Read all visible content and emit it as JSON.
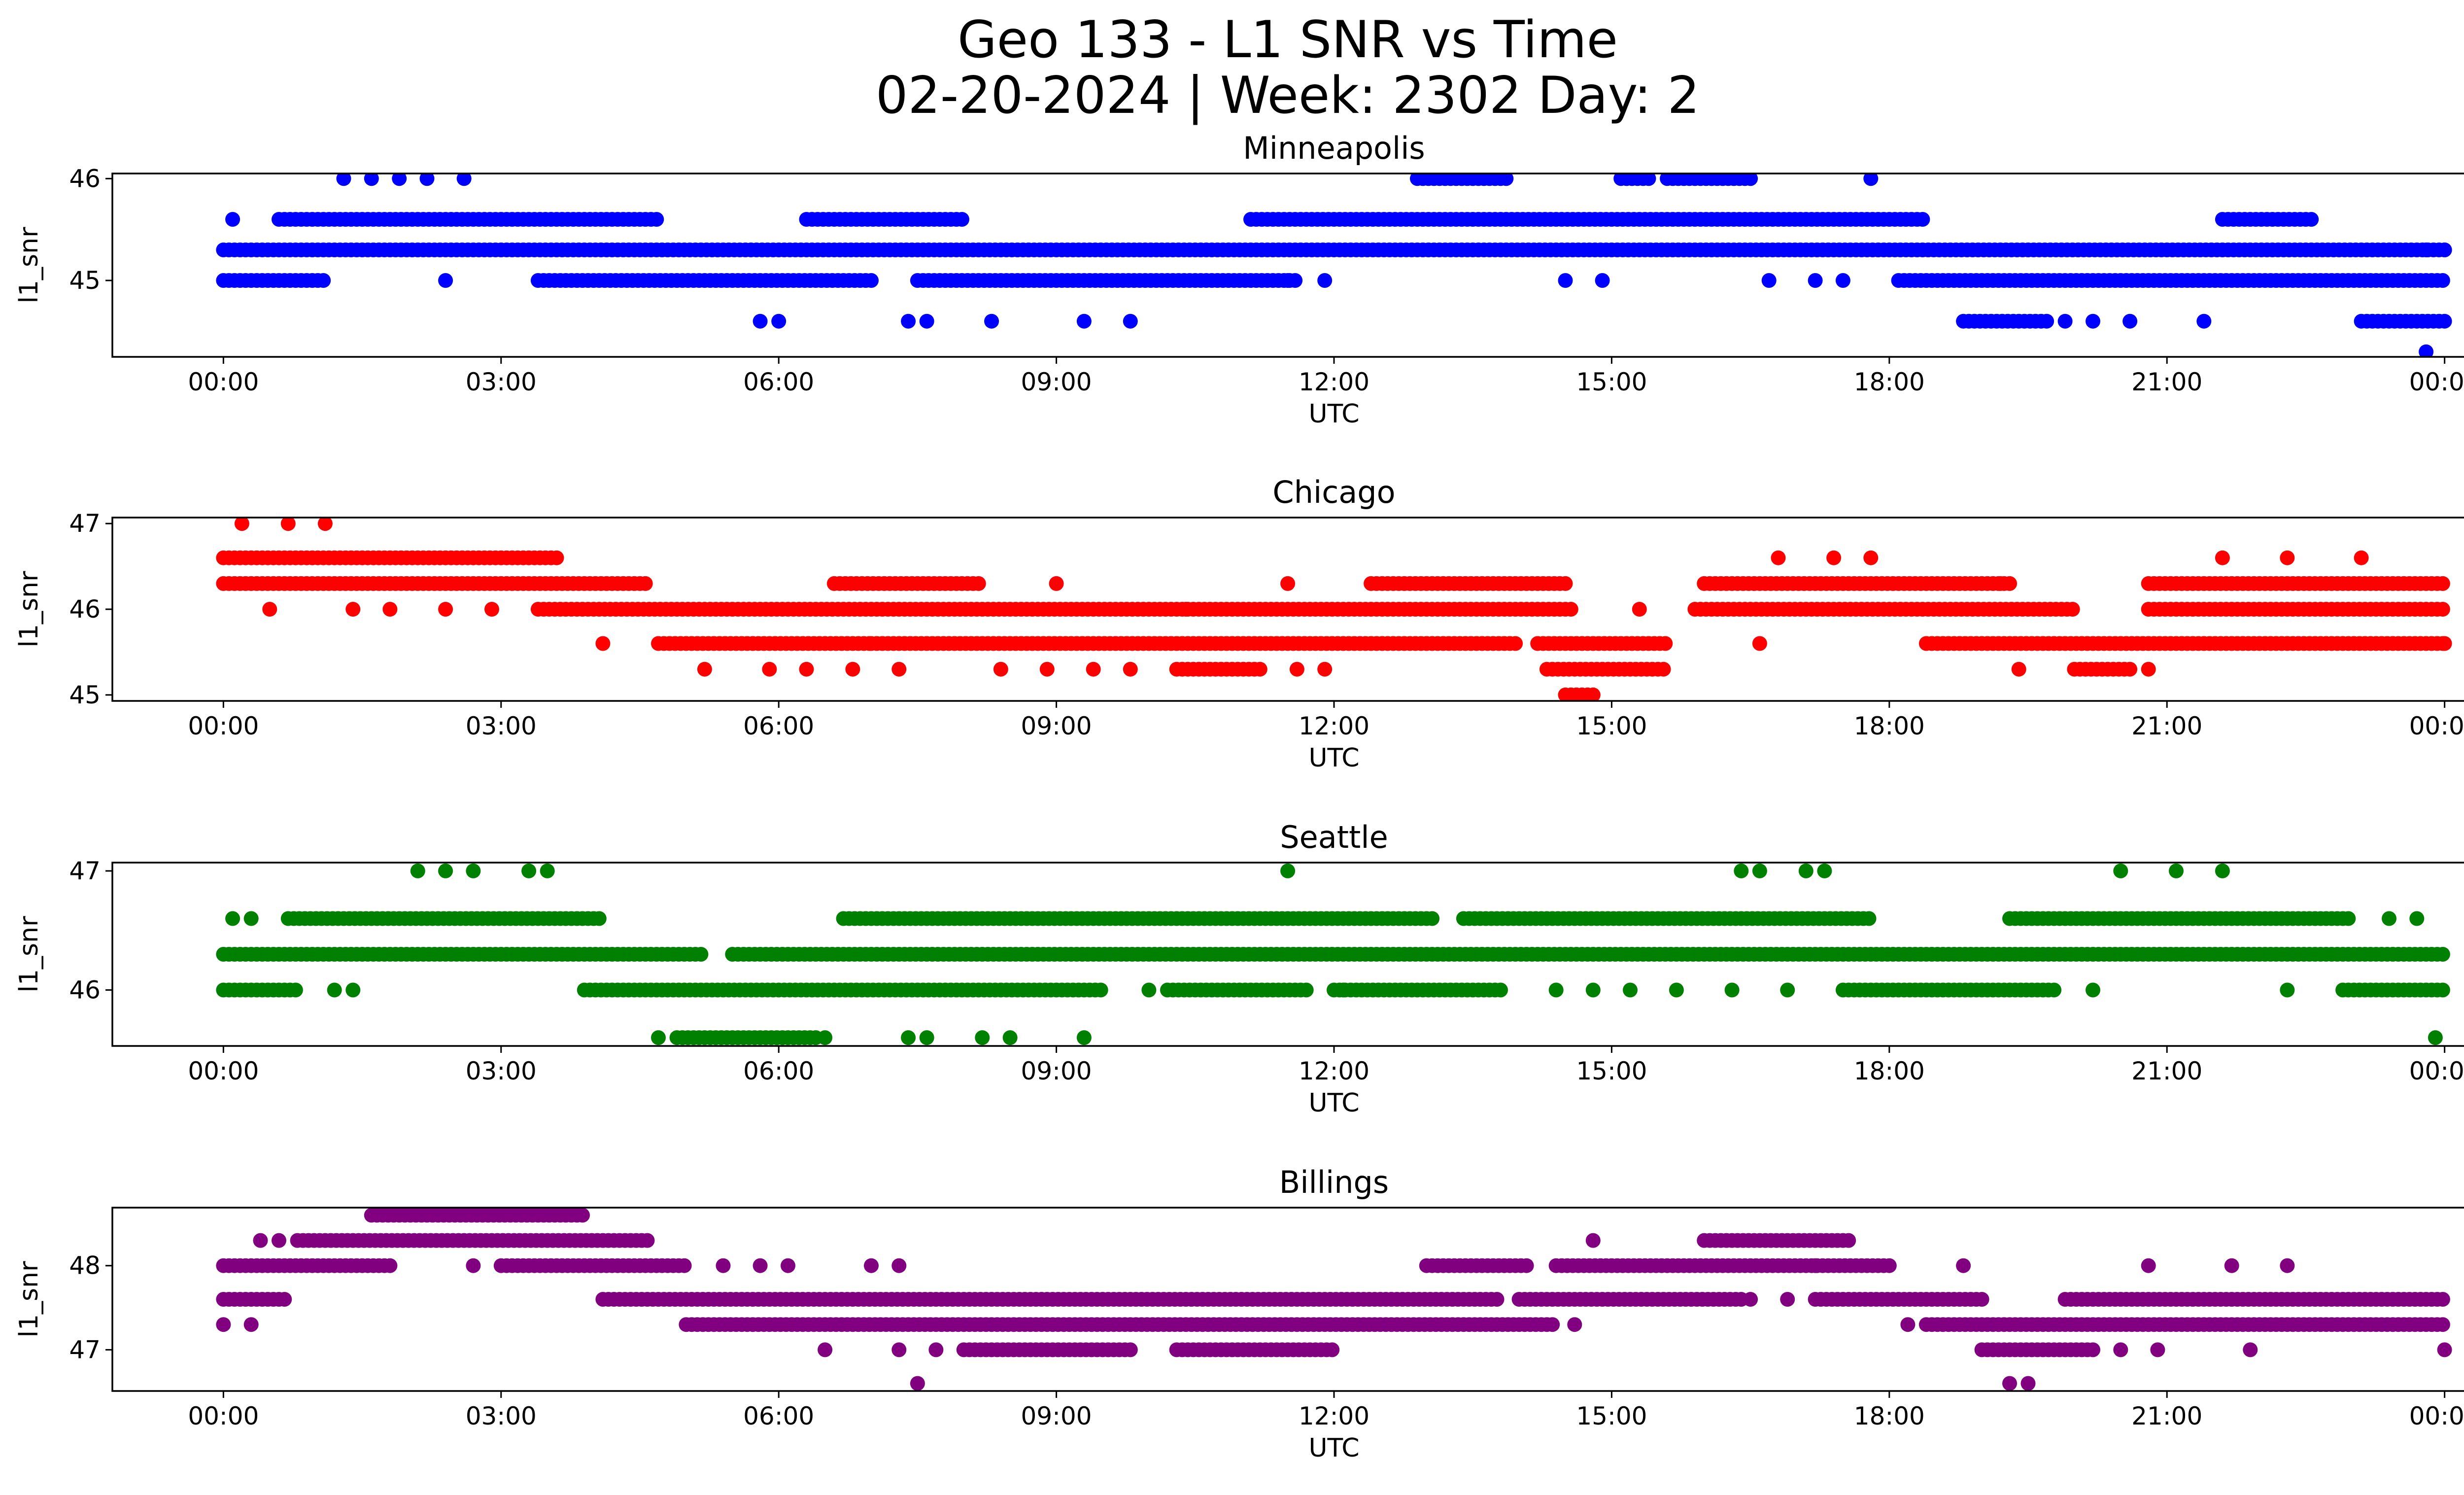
{
  "figure": {
    "title_line1": "Geo 133 - L1 SNR vs Time",
    "title_line2": "02-20-2024 | Week: 2302 Day: 2"
  },
  "chart_data": [
    {
      "type": "scatter",
      "title": "Minneapolis",
      "xlabel": "UTC",
      "ylabel": "l1_snr",
      "color": "#0000ff",
      "x_unit": "hours UTC",
      "xlim": [
        -1.2,
        25.2
      ],
      "ylim": [
        44.25,
        46.05
      ],
      "x_ticks": [
        0,
        3,
        6,
        9,
        12,
        15,
        18,
        21,
        24
      ],
      "x_tick_labels": [
        "00:00",
        "03:00",
        "06:00",
        "09:00",
        "12:00",
        "15:00",
        "18:00",
        "21:00",
        "00:00"
      ],
      "y_ticks": [
        45,
        46
      ],
      "y_tick_labels": [
        "45",
        "46"
      ],
      "series": [
        {
          "segments": [
            {
              "y": 45.3,
              "from": 0.0,
              "to": 24.0
            },
            {
              "y": 45.6,
              "from": 0.6,
              "to": 4.7
            },
            {
              "y": 45.6,
              "from": 6.3,
              "to": 8.0
            },
            {
              "y": 45.6,
              "from": 11.1,
              "to": 18.4
            },
            {
              "y": 45.6,
              "from": 21.6,
              "to": 22.6
            },
            {
              "y": 45.0,
              "from": 0.0,
              "to": 1.1
            },
            {
              "y": 45.0,
              "from": 3.4,
              "to": 7.0
            },
            {
              "y": 45.0,
              "from": 7.5,
              "to": 11.6
            },
            {
              "y": 45.0,
              "from": 18.1,
              "to": 24.0
            },
            {
              "y": 46.0,
              "from": 12.9,
              "to": 13.9
            },
            {
              "y": 46.0,
              "from": 15.1,
              "to": 15.4
            },
            {
              "y": 46.0,
              "from": 15.6,
              "to": 16.5
            },
            {
              "y": 44.6,
              "from": 18.8,
              "to": 19.7
            },
            {
              "y": 44.6,
              "from": 23.1,
              "to": 24.0
            }
          ],
          "points": [
            [
              0.1,
              45.6
            ],
            [
              1.3,
              46.0
            ],
            [
              1.6,
              46.0
            ],
            [
              1.9,
              46.0
            ],
            [
              2.2,
              46.0
            ],
            [
              2.6,
              46.0
            ],
            [
              2.4,
              45.0
            ],
            [
              5.8,
              44.6
            ],
            [
              6.0,
              44.6
            ],
            [
              7.4,
              44.6
            ],
            [
              7.6,
              44.6
            ],
            [
              8.3,
              44.6
            ],
            [
              9.3,
              44.6
            ],
            [
              9.8,
              44.6
            ],
            [
              11.9,
              45.0
            ],
            [
              11.5,
              45.0
            ],
            [
              14.5,
              45.0
            ],
            [
              14.9,
              45.0
            ],
            [
              16.7,
              45.0
            ],
            [
              17.2,
              45.0
            ],
            [
              17.5,
              45.0
            ],
            [
              17.8,
              46.0
            ],
            [
              19.9,
              44.6
            ],
            [
              20.2,
              44.6
            ],
            [
              20.6,
              44.6
            ],
            [
              21.4,
              44.6
            ],
            [
              23.8,
              45.3
            ],
            [
              24.0,
              45.3
            ],
            [
              23.8,
              44.3
            ]
          ]
        }
      ]
    },
    {
      "type": "scatter",
      "title": "Chicago",
      "xlabel": "UTC",
      "ylabel": "l1_snr",
      "color": "#ff0000",
      "x_unit": "hours UTC",
      "xlim": [
        -1.2,
        25.2
      ],
      "ylim": [
        44.93,
        47.07
      ],
      "x_ticks": [
        0,
        3,
        6,
        9,
        12,
        15,
        18,
        21,
        24
      ],
      "x_tick_labels": [
        "00:00",
        "03:00",
        "06:00",
        "09:00",
        "12:00",
        "15:00",
        "18:00",
        "21:00",
        "00:00"
      ],
      "y_ticks": [
        45,
        46,
        47
      ],
      "y_tick_labels": [
        "45",
        "46",
        "47"
      ],
      "series": [
        {
          "segments": [
            {
              "y": 46.6,
              "from": 0.0,
              "to": 3.6
            },
            {
              "y": 46.3,
              "from": 0.0,
              "to": 4.6
            },
            {
              "y": 46.3,
              "from": 6.6,
              "to": 8.2
            },
            {
              "y": 46.3,
              "from": 12.4,
              "to": 14.5
            },
            {
              "y": 46.3,
              "from": 16.0,
              "to": 19.3
            },
            {
              "y": 46.3,
              "from": 20.8,
              "to": 24.0
            },
            {
              "y": 46.0,
              "from": 3.4,
              "to": 14.6
            },
            {
              "y": 46.0,
              "from": 15.9,
              "to": 20.0
            },
            {
              "y": 46.0,
              "from": 20.8,
              "to": 24.0
            },
            {
              "y": 45.6,
              "from": 4.7,
              "to": 7.0
            },
            {
              "y": 45.6,
              "from": 7.0,
              "to": 14.0
            },
            {
              "y": 45.6,
              "from": 14.2,
              "to": 15.6
            },
            {
              "y": 45.6,
              "from": 18.4,
              "to": 24.0
            },
            {
              "y": 45.3,
              "from": 14.3,
              "to": 15.6
            },
            {
              "y": 45.3,
              "from": 10.3,
              "to": 11.2
            },
            {
              "y": 45.3,
              "from": 20.0,
              "to": 20.6
            },
            {
              "y": 45.0,
              "from": 14.5,
              "to": 14.8
            }
          ],
          "points": [
            [
              0.2,
              47.0
            ],
            [
              0.7,
              47.0
            ],
            [
              1.1,
              47.0
            ],
            [
              0.5,
              46.0
            ],
            [
              1.4,
              46.0
            ],
            [
              1.8,
              46.0
            ],
            [
              2.4,
              46.0
            ],
            [
              2.9,
              46.0
            ],
            [
              4.1,
              45.6
            ],
            [
              5.2,
              45.3
            ],
            [
              5.9,
              45.3
            ],
            [
              6.3,
              45.3
            ],
            [
              6.8,
              45.3
            ],
            [
              7.3,
              45.3
            ],
            [
              8.4,
              45.3
            ],
            [
              8.9,
              45.3
            ],
            [
              9.4,
              45.3
            ],
            [
              9.8,
              45.3
            ],
            [
              11.6,
              45.3
            ],
            [
              11.9,
              45.3
            ],
            [
              9.0,
              46.3
            ],
            [
              11.5,
              46.3
            ],
            [
              10.4,
              46.0
            ],
            [
              15.3,
              46.0
            ],
            [
              16.6,
              45.6
            ],
            [
              16.8,
              46.6
            ],
            [
              17.4,
              46.6
            ],
            [
              17.8,
              46.6
            ],
            [
              19.4,
              45.3
            ],
            [
              19.2,
              46.3
            ],
            [
              20.8,
              45.3
            ],
            [
              21.6,
              46.6
            ],
            [
              22.3,
              46.6
            ],
            [
              23.1,
              46.6
            ],
            [
              24.0,
              45.6
            ]
          ]
        }
      ]
    },
    {
      "type": "scatter",
      "title": "Seattle",
      "xlabel": "UTC",
      "ylabel": "l1_snr",
      "color": "#008000",
      "x_unit": "hours UTC",
      "xlim": [
        -1.2,
        25.2
      ],
      "ylim": [
        45.53,
        47.07
      ],
      "x_ticks": [
        0,
        3,
        6,
        9,
        12,
        15,
        18,
        21,
        24
      ],
      "x_tick_labels": [
        "00:00",
        "03:00",
        "06:00",
        "09:00",
        "12:00",
        "15:00",
        "18:00",
        "21:00",
        "00:00"
      ],
      "y_ticks": [
        46,
        47
      ],
      "y_tick_labels": [
        "46",
        "47"
      ],
      "series": [
        {
          "segments": [
            {
              "y": 46.3,
              "from": 0.0,
              "to": 5.2
            },
            {
              "y": 46.3,
              "from": 5.5,
              "to": 24.0
            },
            {
              "y": 46.6,
              "from": 0.7,
              "to": 4.1
            },
            {
              "y": 46.6,
              "from": 6.7,
              "to": 13.1
            },
            {
              "y": 46.6,
              "from": 13.4,
              "to": 17.8
            },
            {
              "y": 46.6,
              "from": 19.3,
              "to": 23.0
            },
            {
              "y": 46.0,
              "from": 0.0,
              "to": 0.8
            },
            {
              "y": 46.0,
              "from": 3.9,
              "to": 9.5
            },
            {
              "y": 46.0,
              "from": 10.2,
              "to": 11.7
            },
            {
              "y": 46.0,
              "from": 12.0,
              "to": 13.8
            },
            {
              "y": 46.0,
              "from": 17.5,
              "to": 19.8
            },
            {
              "y": 46.0,
              "from": 22.9,
              "to": 24.0
            },
            {
              "y": 45.6,
              "from": 4.9,
              "to": 6.4
            }
          ],
          "points": [
            [
              0.1,
              46.6
            ],
            [
              0.3,
              46.6
            ],
            [
              1.2,
              46.0
            ],
            [
              1.4,
              46.0
            ],
            [
              2.1,
              47.0
            ],
            [
              2.4,
              47.0
            ],
            [
              2.7,
              47.0
            ],
            [
              3.3,
              47.0
            ],
            [
              3.5,
              47.0
            ],
            [
              4.7,
              45.6
            ],
            [
              6.5,
              45.6
            ],
            [
              7.4,
              45.6
            ],
            [
              7.6,
              45.6
            ],
            [
              8.2,
              45.6
            ],
            [
              8.5,
              45.6
            ],
            [
              9.3,
              45.6
            ],
            [
              11.5,
              47.0
            ],
            [
              10.0,
              46.0
            ],
            [
              12.1,
              46.0
            ],
            [
              14.4,
              46.0
            ],
            [
              14.8,
              46.0
            ],
            [
              15.2,
              46.0
            ],
            [
              15.7,
              46.0
            ],
            [
              16.3,
              46.0
            ],
            [
              16.9,
              46.0
            ],
            [
              16.4,
              47.0
            ],
            [
              16.6,
              47.0
            ],
            [
              17.1,
              47.0
            ],
            [
              17.3,
              47.0
            ],
            [
              20.5,
              47.0
            ],
            [
              21.1,
              47.0
            ],
            [
              21.6,
              47.0
            ],
            [
              20.2,
              46.0
            ],
            [
              22.3,
              46.0
            ],
            [
              23.4,
              46.6
            ],
            [
              23.7,
              46.6
            ],
            [
              23.9,
              45.6
            ]
          ]
        }
      ]
    },
    {
      "type": "scatter",
      "title": "Billings",
      "xlabel": "UTC",
      "ylabel": "l1_snr",
      "color": "#800080",
      "x_unit": "hours UTC",
      "xlim": [
        -1.2,
        25.2
      ],
      "ylim": [
        46.51,
        48.69
      ],
      "x_ticks": [
        0,
        3,
        6,
        9,
        12,
        15,
        18,
        21,
        24
      ],
      "x_tick_labels": [
        "00:00",
        "03:00",
        "06:00",
        "09:00",
        "12:00",
        "15:00",
        "18:00",
        "21:00",
        "00:00"
      ],
      "y_ticks": [
        47,
        48
      ],
      "y_tick_labels": [
        "47",
        "48"
      ],
      "series": [
        {
          "segments": [
            {
              "y": 47.6,
              "from": 0.0,
              "to": 0.7
            },
            {
              "y": 48.0,
              "from": 0.0,
              "to": 1.8
            },
            {
              "y": 48.3,
              "from": 0.8,
              "to": 4.6
            },
            {
              "y": 48.6,
              "from": 1.6,
              "to": 3.9
            },
            {
              "y": 48.0,
              "from": 3.0,
              "to": 5.0
            },
            {
              "y": 48.0,
              "from": 13.0,
              "to": 14.1
            },
            {
              "y": 48.0,
              "from": 14.4,
              "to": 18.0
            },
            {
              "y": 48.3,
              "from": 16.0,
              "to": 17.6
            },
            {
              "y": 47.6,
              "from": 4.1,
              "to": 13.8
            },
            {
              "y": 47.6,
              "from": 14.0,
              "to": 16.4
            },
            {
              "y": 47.6,
              "from": 17.2,
              "to": 19.0
            },
            {
              "y": 47.6,
              "from": 19.9,
              "to": 24.0
            },
            {
              "y": 47.3,
              "from": 5.0,
              "to": 14.4
            },
            {
              "y": 47.3,
              "from": 18.4,
              "to": 24.0
            },
            {
              "y": 47.0,
              "from": 8.0,
              "to": 9.8
            },
            {
              "y": 47.0,
              "from": 10.3,
              "to": 12.0
            },
            {
              "y": 47.0,
              "from": 19.0,
              "to": 20.2
            }
          ],
          "points": [
            [
              0.0,
              47.3
            ],
            [
              0.3,
              47.3
            ],
            [
              0.4,
              48.3
            ],
            [
              0.6,
              48.3
            ],
            [
              2.7,
              48.0
            ],
            [
              5.4,
              48.0
            ],
            [
              5.8,
              48.0
            ],
            [
              6.1,
              48.0
            ],
            [
              7.0,
              48.0
            ],
            [
              7.3,
              48.0
            ],
            [
              6.5,
              47.0
            ],
            [
              7.3,
              47.0
            ],
            [
              7.7,
              47.0
            ],
            [
              7.5,
              46.6
            ],
            [
              14.6,
              47.3
            ],
            [
              14.8,
              48.3
            ],
            [
              16.5,
              47.6
            ],
            [
              16.9,
              47.6
            ],
            [
              17.2,
              48.0
            ],
            [
              18.2,
              47.3
            ],
            [
              18.8,
              48.0
            ],
            [
              19.3,
              46.6
            ],
            [
              19.5,
              46.6
            ],
            [
              20.5,
              47.0
            ],
            [
              20.9,
              47.0
            ],
            [
              20.8,
              48.0
            ],
            [
              21.7,
              48.0
            ],
            [
              22.3,
              48.0
            ],
            [
              21.9,
              47.0
            ],
            [
              24.0,
              47.0
            ]
          ]
        }
      ]
    }
  ]
}
